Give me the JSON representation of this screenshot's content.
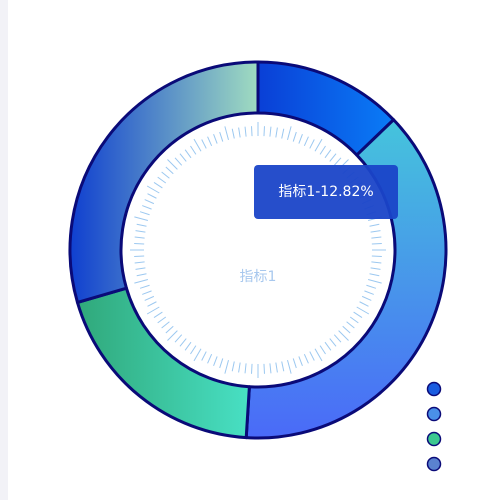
{
  "chart_data": {
    "type": "donut",
    "categories": [
      "指标1",
      null,
      null,
      null
    ],
    "values": [
      12.82,
      38.18,
      19.5,
      29.5
    ],
    "colors": [
      [
        "#0a3fd6",
        "#0a7cf7"
      ],
      [
        "#45c4dc",
        "#4a6af8"
      ],
      [
        "#30a87a",
        "#48e0c4"
      ],
      [
        "#0f3fd0",
        "#a0dcc0"
      ]
    ],
    "legend_colors": [
      "#1a5ce0",
      "#4a90e8",
      "#3cc890",
      "#5a82d0"
    ],
    "tooltip": "指标1-12.82%"
  }
}
